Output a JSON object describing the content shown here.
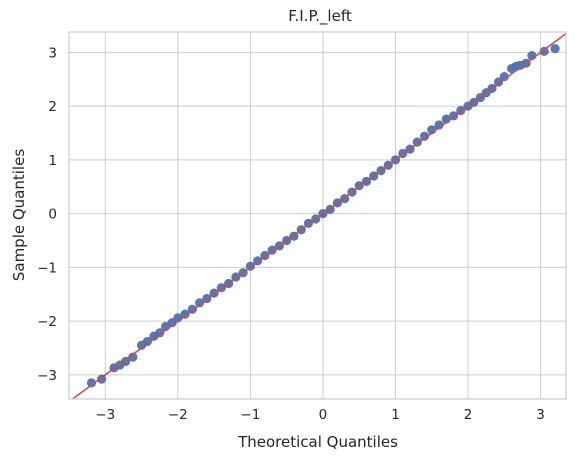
{
  "chart_data": {
    "type": "scatter",
    "title": "F.I.P._left",
    "xlabel": "Theoretical Quantiles",
    "ylabel": "Sample Quantiles",
    "xlim": [
      -3.5,
      3.35
    ],
    "ylim": [
      -3.45,
      3.38
    ],
    "xticks": [
      -3,
      -2,
      -1,
      0,
      1,
      2,
      3
    ],
    "yticks": [
      -3,
      -2,
      -1,
      0,
      1,
      2,
      3
    ],
    "xtick_labels": [
      "−3",
      "−2",
      "−1",
      "0",
      "1",
      "2",
      "3"
    ],
    "ytick_labels": [
      "−3",
      "−2",
      "−1",
      "0",
      "1",
      "2",
      "3"
    ],
    "grid": true,
    "point_color": "#4c72b0",
    "line_color": "#c44e52",
    "reference_line": {
      "slope": 1,
      "intercept": 0
    },
    "series": [
      {
        "x": [
          -3.19,
          -3.05,
          -2.88,
          -2.8,
          -2.72,
          -2.62,
          -2.5,
          -2.42,
          -2.33,
          -2.25,
          -2.17,
          -2.08,
          -2.0,
          -1.9,
          -1.8,
          -1.7,
          -1.6,
          -1.5,
          -1.4,
          -1.3,
          -1.2,
          -1.1,
          -1.0,
          -0.9,
          -0.8,
          -0.7,
          -0.6,
          -0.5,
          -0.4,
          -0.3,
          -0.2,
          -0.1,
          0.0,
          0.1,
          0.2,
          0.3,
          0.4,
          0.5,
          0.6,
          0.7,
          0.8,
          0.9,
          1.0,
          1.1,
          1.2,
          1.3,
          1.4,
          1.5,
          1.6,
          1.7,
          1.8,
          1.9,
          2.0,
          2.08,
          2.17,
          2.25,
          2.33,
          2.42,
          2.5,
          2.6,
          2.66,
          2.72,
          2.8,
          2.88,
          3.05,
          3.2
        ],
        "y": [
          -3.15,
          -3.08,
          -2.87,
          -2.82,
          -2.75,
          -2.67,
          -2.45,
          -2.38,
          -2.28,
          -2.22,
          -2.1,
          -2.03,
          -1.94,
          -1.87,
          -1.78,
          -1.66,
          -1.58,
          -1.48,
          -1.38,
          -1.3,
          -1.18,
          -1.1,
          -0.98,
          -0.88,
          -0.78,
          -0.68,
          -0.6,
          -0.5,
          -0.42,
          -0.3,
          -0.18,
          -0.1,
          0.0,
          0.08,
          0.2,
          0.28,
          0.4,
          0.52,
          0.6,
          0.7,
          0.8,
          0.9,
          1.0,
          1.12,
          1.2,
          1.33,
          1.44,
          1.56,
          1.65,
          1.76,
          1.82,
          1.92,
          2.0,
          2.07,
          2.16,
          2.25,
          2.33,
          2.45,
          2.55,
          2.7,
          2.74,
          2.76,
          2.8,
          2.94,
          3.02,
          3.07
        ]
      }
    ]
  }
}
